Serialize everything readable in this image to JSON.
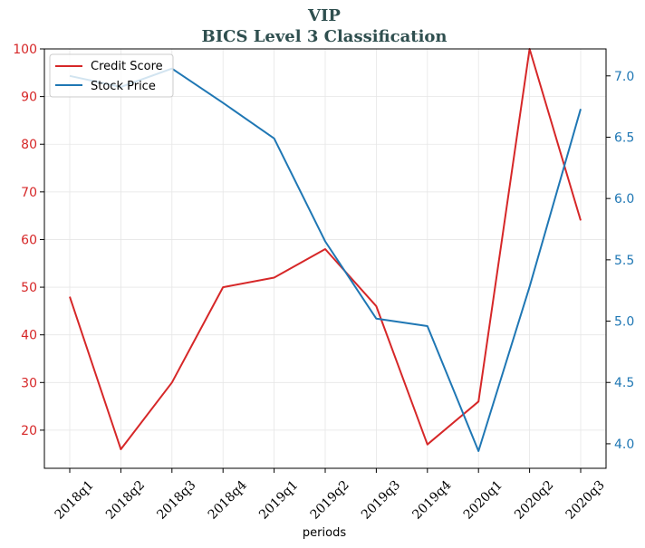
{
  "chart_data": {
    "type": "line",
    "title": "VIP",
    "subtitle": "BICS Level 3 Classification",
    "xlabel": "periods",
    "x": [
      "2018q1",
      "2018q2",
      "2018q3",
      "2018q4",
      "2019q1",
      "2019q2",
      "2019q3",
      "2019q4",
      "2020q1",
      "2020q2",
      "2020q3"
    ],
    "series": [
      {
        "name": "Credit Score",
        "axis": "left",
        "color": "#d62728",
        "values": [
          48,
          16,
          30,
          50,
          52,
          58,
          46,
          17,
          26,
          100,
          64
        ]
      },
      {
        "name": "Stock Price",
        "axis": "right",
        "color": "#1f77b4",
        "values": [
          7.0,
          6.91,
          7.06,
          6.78,
          6.49,
          5.65,
          5.02,
          4.96,
          3.94,
          5.28,
          6.73
        ]
      }
    ],
    "y_left": {
      "ylim": [
        12,
        100
      ],
      "ticks": [
        20,
        30,
        40,
        50,
        60,
        70,
        80,
        90,
        100
      ]
    },
    "y_right": {
      "ylim": [
        3.8,
        7.22
      ],
      "ticks": [
        "4.0",
        "4.5",
        "5.0",
        "5.5",
        "6.0",
        "6.5",
        "7.0"
      ]
    },
    "grid": true,
    "legend_position": "top-left"
  }
}
